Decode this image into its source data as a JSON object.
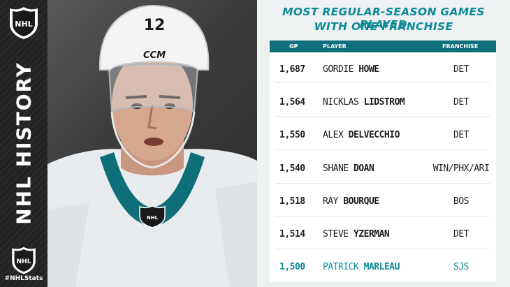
{
  "sidebar": {
    "vertical_title": "NHL HISTORY",
    "hashtag": "#NHLStats",
    "logo_text": "NHL"
  },
  "photo": {
    "helmet_number": "12",
    "helmet_brand": "CCM",
    "jersey_logo": "NHL"
  },
  "panel": {
    "title_line1": "MOST REGULAR-SEASON GAMES PLAYED",
    "title_line2": "WITH ONE FRANCHISE",
    "columns": {
      "gp": "GP",
      "player": "PLAYER",
      "franchise": "FRANCHISE"
    },
    "rows": [
      {
        "gp": "1,687",
        "first": "GORDIE",
        "last": "HOWE",
        "franchise": "DET"
      },
      {
        "gp": "1,564",
        "first": "NICKLAS",
        "last": "LIDSTROM",
        "franchise": "DET"
      },
      {
        "gp": "1,550",
        "first": "ALEX",
        "last": "DELVECCHIO",
        "franchise": "DET"
      },
      {
        "gp": "1,540",
        "first": "SHANE",
        "last": "DOAN",
        "franchise": "WIN/PHX/ARI"
      },
      {
        "gp": "1,518",
        "first": "RAY",
        "last": "BOURQUE",
        "franchise": "BOS"
      },
      {
        "gp": "1,514",
        "first": "STEVE",
        "last": "YZERMAN",
        "franchise": "DET"
      },
      {
        "gp": "1,500",
        "first": "PATRICK",
        "last": "MARLEAU",
        "franchise": "SJS",
        "highlight": true
      }
    ],
    "highlight_color": "#0d8a96",
    "header_color": "#0f6f7a"
  }
}
